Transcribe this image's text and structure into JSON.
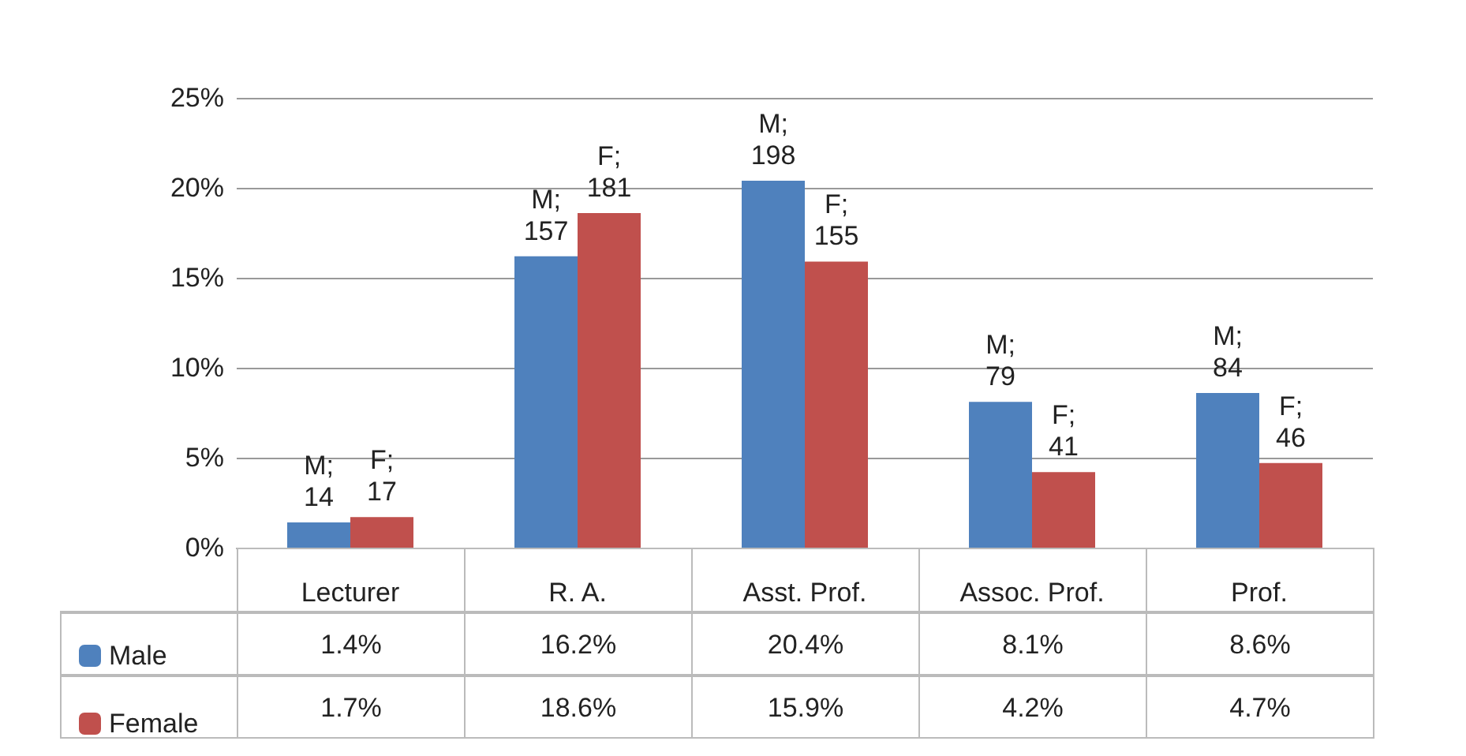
{
  "chart_data": {
    "type": "bar",
    "categories": [
      "Lecturer",
      "R. A.",
      "Asst. Prof.",
      "Assoc. Prof.",
      "Prof."
    ],
    "series": [
      {
        "name": "Male",
        "color": "#4f81bd",
        "values": [
          1.4,
          16.2,
          20.4,
          8.1,
          8.6
        ],
        "value_labels": [
          "1.4%",
          "16.2%",
          "20.4%",
          "8.1%",
          "8.6%"
        ]
      },
      {
        "name": "Female",
        "color": "#c0504d",
        "values": [
          1.7,
          18.6,
          15.9,
          4.2,
          4.7
        ],
        "value_labels": [
          "1.7%",
          "18.6%",
          "15.9%",
          "4.2%",
          "4.7%"
        ]
      }
    ],
    "annotations": [
      {
        "text": "M; 14",
        "x": "Lecturer",
        "y": 1.4
      },
      {
        "text": "F; 17",
        "x": "Lecturer",
        "y": 1.7
      },
      {
        "text": "M; 157",
        "x": "R. A.",
        "y": 16.2
      },
      {
        "text": "F; 181",
        "x": "R. A.",
        "y": 18.6
      },
      {
        "text": "M; 198",
        "x": "Asst. Prof.",
        "y": 20.4
      },
      {
        "text": "F; 155",
        "x": "Asst. Prof.",
        "y": 15.9
      },
      {
        "text": "M; 79",
        "x": "Assoc. Prof.",
        "y": 8.1
      },
      {
        "text": "F; 41",
        "x": "Assoc. Prof.",
        "y": 4.2
      },
      {
        "text": "M; 84",
        "x": "Prof.",
        "y": 8.6
      },
      {
        "text": "F; 46",
        "x": "Prof.",
        "y": 4.7
      }
    ],
    "ylim": [
      0,
      25
    ],
    "yticks": [
      {
        "value": 0,
        "label": "0%"
      },
      {
        "value": 5,
        "label": "5%"
      },
      {
        "value": 10,
        "label": "10%"
      },
      {
        "value": 15,
        "label": "15%"
      },
      {
        "value": 20,
        "label": "20%"
      },
      {
        "value": 25,
        "label": "25%"
      }
    ],
    "grid": "y",
    "legend": "bottom left"
  }
}
